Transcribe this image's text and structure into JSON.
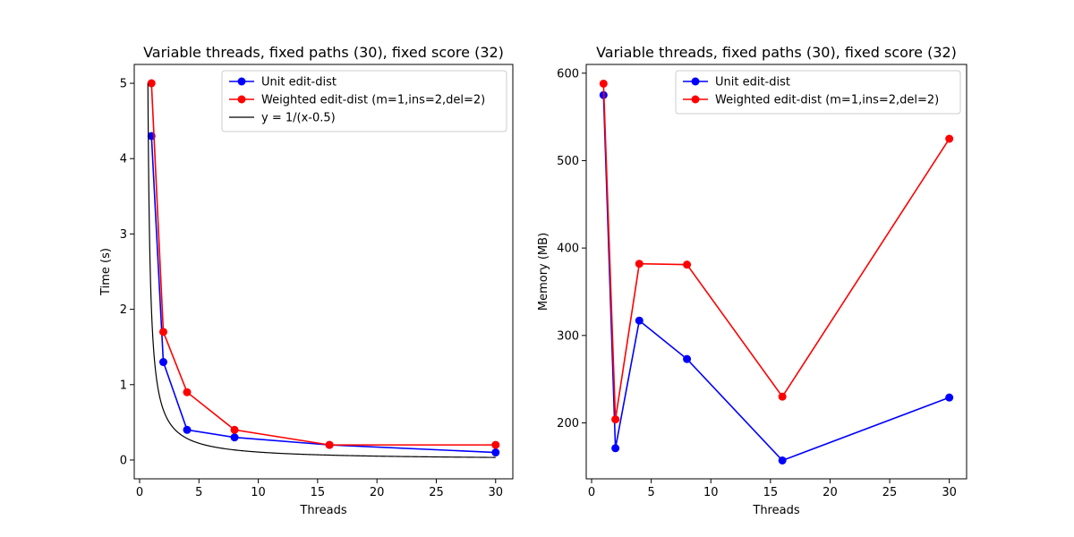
{
  "chart_data": [
    {
      "type": "line",
      "title": "Variable threads, fixed paths (30), fixed score (32)",
      "xlabel": "Threads",
      "ylabel": "Time (s)",
      "xlim": [
        -0.45,
        31.45
      ],
      "ylim": [
        -0.25,
        5.25
      ],
      "xticks": [
        0,
        5,
        10,
        15,
        20,
        25,
        30
      ],
      "yticks": [
        0,
        1,
        2,
        3,
        4,
        5
      ],
      "legend_position": "top-right",
      "series": [
        {
          "name": "Unit edit-dist",
          "color": "#0000ff",
          "marker": "circle",
          "x": [
            1,
            2,
            4,
            8,
            16,
            30
          ],
          "y": [
            4.3,
            1.3,
            0.4,
            0.3,
            0.2,
            0.1
          ]
        },
        {
          "name": "Weighted edit-dist (m=1,ins=2,del=2)",
          "color": "#ff0000",
          "marker": "circle",
          "x": [
            1,
            2,
            4,
            8,
            16,
            30
          ],
          "y": [
            5.0,
            1.7,
            0.9,
            0.4,
            0.2,
            0.2
          ]
        },
        {
          "name": "y = 1/(x-0.5)",
          "color": "#000000",
          "marker": "none",
          "function": "1/(x-0.5)",
          "x_range": [
            0.7,
            30
          ]
        }
      ]
    },
    {
      "type": "line",
      "title": "Variable threads, fixed paths (30), fixed score (32)",
      "xlabel": "Threads",
      "ylabel": "Memory (MB)",
      "xlim": [
        -0.45,
        31.45
      ],
      "ylim": [
        136,
        610
      ],
      "xticks": [
        0,
        5,
        10,
        15,
        20,
        25,
        30
      ],
      "yticks": [
        200,
        300,
        400,
        500,
        600
      ],
      "legend_position": "top-right",
      "series": [
        {
          "name": "Unit edit-dist",
          "color": "#0000ff",
          "marker": "circle",
          "x": [
            1,
            2,
            4,
            8,
            16,
            30
          ],
          "y": [
            575,
            171,
            317,
            273,
            157,
            229
          ]
        },
        {
          "name": "Weighted edit-dist (m=1,ins=2,del=2)",
          "color": "#ff0000",
          "marker": "circle",
          "x": [
            1,
            2,
            4,
            8,
            16,
            30
          ],
          "y": [
            588,
            204,
            382,
            381,
            230,
            525
          ]
        }
      ]
    }
  ]
}
